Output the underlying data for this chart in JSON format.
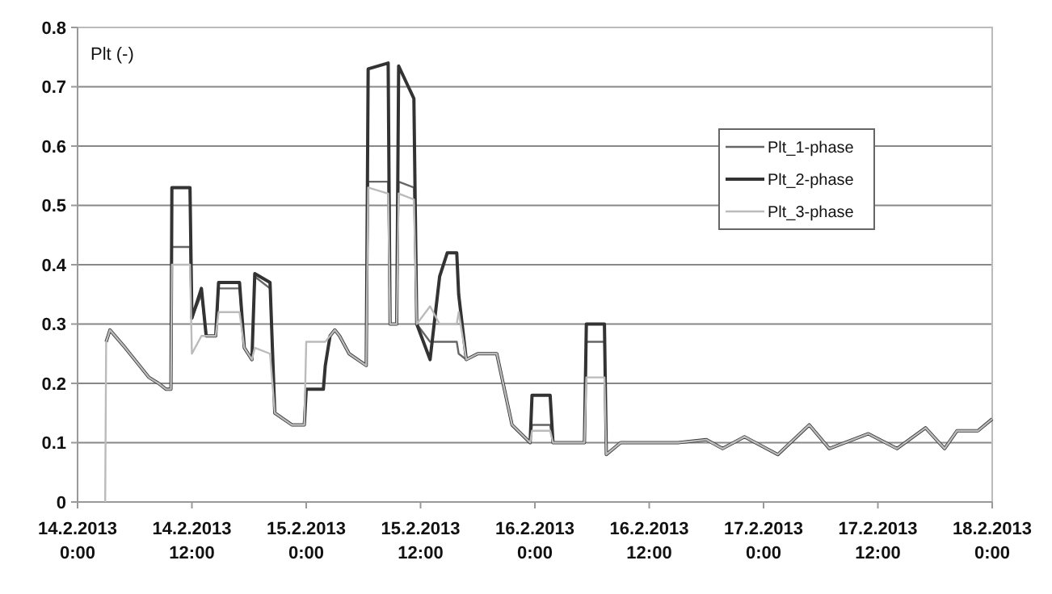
{
  "chart_data": {
    "type": "line",
    "ylabel": "Plt (-)",
    "x": [
      "2013-02-14T02:54",
      "2013-02-14T03:00",
      "2013-02-14T03:24",
      "2013-02-14T05:00",
      "2013-02-14T06:30",
      "2013-02-14T07:30",
      "2013-02-14T08:30",
      "2013-02-14T09:18",
      "2013-02-14T09:48",
      "2013-02-14T09:54",
      "2013-02-14T11:48",
      "2013-02-14T12:00",
      "2013-02-14T13:00",
      "2013-02-14T13:30",
      "2013-02-14T14:30",
      "2013-02-14T14:48",
      "2013-02-14T17:00",
      "2013-02-14T17:30",
      "2013-02-14T18:18",
      "2013-02-14T18:36",
      "2013-02-14T20:12",
      "2013-02-14T20:42",
      "2013-02-14T22:30",
      "2013-02-14T23:48",
      "2013-02-15T00:00",
      "2013-02-15T01:48",
      "2013-02-15T02:00",
      "2013-02-15T02:30",
      "2013-02-15T03:00",
      "2013-02-15T03:30",
      "2013-02-15T04:30",
      "2013-02-15T06:18",
      "2013-02-15T06:30",
      "2013-02-15T08:36",
      "2013-02-15T08:48",
      "2013-02-15T09:30",
      "2013-02-15T09:42",
      "2013-02-15T11:18",
      "2013-02-15T11:36",
      "2013-02-15T13:00",
      "2013-02-15T14:00",
      "2013-02-15T14:48",
      "2013-02-15T15:48",
      "2013-02-15T16:00",
      "2013-02-15T16:48",
      "2013-02-15T18:00",
      "2013-02-15T20:00",
      "2013-02-15T21:36",
      "2013-02-15T23:30",
      "2013-02-15T23:42",
      "2013-02-16T01:36",
      "2013-02-16T01:54",
      "2013-02-16T05:12",
      "2013-02-16T05:24",
      "2013-02-16T07:18",
      "2013-02-16T07:30",
      "2013-02-16T09:00",
      "2013-02-16T11:42",
      "2013-02-16T15:00",
      "2013-02-16T18:00",
      "2013-02-16T19:42",
      "2013-02-16T22:00",
      "2013-02-17T01:30",
      "2013-02-17T04:48",
      "2013-02-17T06:54",
      "2013-02-17T11:00",
      "2013-02-17T14:00",
      "2013-02-17T17:00",
      "2013-02-17T19:00",
      "2013-02-17T20:18",
      "2013-02-17T22:30",
      "2013-02-18T00:00"
    ],
    "series": [
      {
        "name": "Plt_1-phase",
        "color": "#666666",
        "values": [
          null,
          0.27,
          0.29,
          0.26,
          0.23,
          0.21,
          0.2,
          0.19,
          0.19,
          0.43,
          0.43,
          0.31,
          0.35,
          0.28,
          0.28,
          0.36,
          0.36,
          0.26,
          0.24,
          0.38,
          0.36,
          0.15,
          0.13,
          0.13,
          0.19,
          0.19,
          0.23,
          0.28,
          0.29,
          0.28,
          0.25,
          0.23,
          0.54,
          0.54,
          0.3,
          0.3,
          0.54,
          0.53,
          0.3,
          0.27,
          0.27,
          0.27,
          0.27,
          0.25,
          0.24,
          0.25,
          0.25,
          0.13,
          0.1,
          0.13,
          0.13,
          0.1,
          0.1,
          0.27,
          0.27,
          0.08,
          0.1,
          0.1,
          0.1,
          0.105,
          0.09,
          0.11,
          0.08,
          0.13,
          0.09,
          0.115,
          0.09,
          0.125,
          0.09,
          0.12,
          0.12,
          0.14
        ]
      },
      {
        "name": "Plt_2-phase",
        "color": "#333333",
        "values": [
          null,
          0.27,
          0.29,
          0.26,
          0.23,
          0.21,
          0.2,
          0.19,
          0.19,
          0.53,
          0.53,
          0.31,
          0.36,
          0.28,
          0.28,
          0.37,
          0.37,
          0.26,
          0.24,
          0.385,
          0.37,
          0.15,
          0.13,
          0.13,
          0.19,
          0.19,
          0.23,
          0.28,
          0.29,
          0.28,
          0.25,
          0.23,
          0.73,
          0.74,
          0.3,
          0.3,
          0.735,
          0.68,
          0.3,
          0.24,
          0.38,
          0.42,
          0.42,
          0.35,
          0.24,
          0.25,
          0.25,
          0.13,
          0.1,
          0.18,
          0.18,
          0.1,
          0.1,
          0.3,
          0.3,
          0.08,
          0.1,
          0.1,
          0.1,
          0.105,
          0.09,
          0.11,
          0.08,
          0.13,
          0.09,
          0.115,
          0.09,
          0.125,
          0.09,
          0.12,
          0.12,
          0.14
        ]
      },
      {
        "name": "Plt_3-phase",
        "color": "#bbbbbb",
        "values": [
          0,
          0.27,
          0.29,
          0.26,
          0.23,
          0.21,
          0.2,
          0.19,
          0.19,
          0.4,
          0.4,
          0.25,
          0.28,
          0.28,
          0.28,
          0.32,
          0.32,
          0.26,
          0.24,
          0.26,
          0.25,
          0.15,
          0.13,
          0.13,
          0.27,
          0.27,
          0.27,
          0.28,
          0.29,
          0.28,
          0.25,
          0.23,
          0.53,
          0.52,
          0.3,
          0.3,
          0.52,
          0.51,
          0.3,
          0.33,
          0.3,
          0.3,
          0.3,
          0.32,
          0.24,
          0.25,
          0.25,
          0.13,
          0.1,
          0.12,
          0.12,
          0.1,
          0.1,
          0.21,
          0.21,
          0.08,
          0.1,
          0.1,
          0.1,
          0.105,
          0.09,
          0.11,
          0.08,
          0.13,
          0.09,
          0.115,
          0.09,
          0.125,
          0.09,
          0.12,
          0.12,
          0.14
        ]
      }
    ],
    "xlim": [
      "2013-02-14T00:00",
      "2013-02-18T00:00"
    ],
    "xticks": [
      {
        "value": "2013-02-14T00:00",
        "label": "14.2.2013\n0:00"
      },
      {
        "value": "2013-02-14T12:00",
        "label": "14.2.2013\n12:00"
      },
      {
        "value": "2013-02-15T00:00",
        "label": "15.2.2013\n0:00"
      },
      {
        "value": "2013-02-15T12:00",
        "label": "15.2.2013\n12:00"
      },
      {
        "value": "2013-02-16T00:00",
        "label": "16.2.2013\n0:00"
      },
      {
        "value": "2013-02-16T12:00",
        "label": "16.2.2013\n12:00"
      },
      {
        "value": "2013-02-17T00:00",
        "label": "17.2.2013\n0:00"
      },
      {
        "value": "2013-02-17T12:00",
        "label": "17.2.2013\n12:00"
      },
      {
        "value": "2013-02-18T00:00",
        "label": "18.2.2013\n0:00"
      }
    ],
    "ylim": [
      0,
      0.8
    ],
    "yticks": [
      0,
      0.1,
      0.2,
      0.3,
      0.4,
      0.5,
      0.6,
      0.7,
      0.8
    ],
    "grid": "y",
    "legend": "right",
    "marker": "none",
    "line_style": "solid"
  }
}
